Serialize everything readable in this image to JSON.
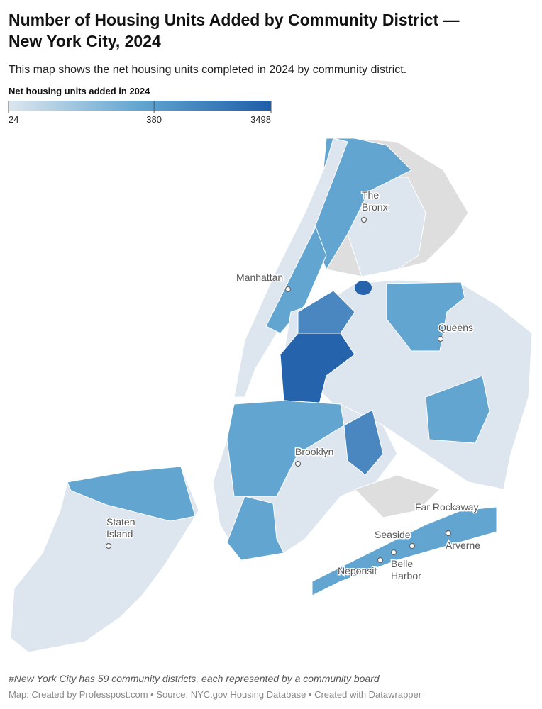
{
  "header": {
    "title": "Number of Housing Units Added by Community District — New York City, 2024",
    "subtitle": "This map shows the net housing units completed in 2024 by community district."
  },
  "legend": {
    "title": "Net housing units added in 2024",
    "ticks": [
      24,
      380,
      3498
    ],
    "scale": "log",
    "colors": [
      "#dde6ee",
      "#62a5d0",
      "#1f5ea8"
    ]
  },
  "places": [
    {
      "lines": [
        "The",
        "Bronx"
      ]
    },
    {
      "lines": [
        "Manhattan"
      ]
    },
    {
      "lines": [
        "Queens"
      ]
    },
    {
      "lines": [
        "Brooklyn"
      ]
    },
    {
      "lines": [
        "Staten",
        "Island"
      ]
    },
    {
      "lines": [
        "Far Rockaway"
      ]
    },
    {
      "lines": [
        "Seaside"
      ]
    },
    {
      "lines": [
        "Belle",
        "Harbor"
      ]
    },
    {
      "lines": [
        "Arverne"
      ]
    },
    {
      "lines": [
        "Neponsit"
      ]
    }
  ],
  "footer": {
    "note": "#New York City has 59 community districts, each represented by a community board",
    "source": "Map: Created by Professpost.com  • Source: NYC.gov Housing Database  • Created with Datawrapper"
  }
}
